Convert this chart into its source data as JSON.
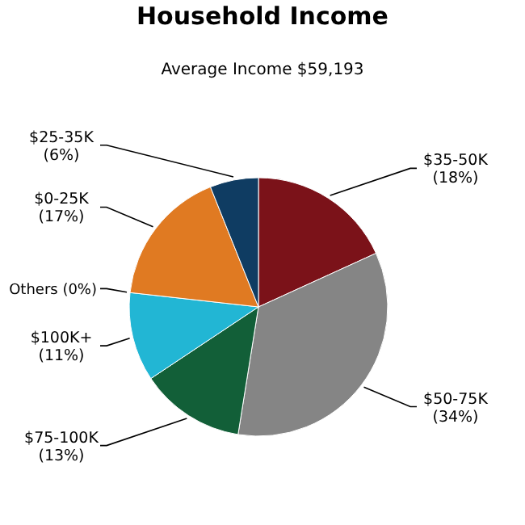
{
  "chart_data": {
    "type": "pie",
    "title": "Household Income",
    "subtitle": "Average Income  $59,193",
    "categories": [
      "$35-50K",
      "$50-75K",
      "$75-100K",
      "$100K+",
      "Others",
      "$0-25K",
      "$25-35K"
    ],
    "values": [
      18,
      34,
      13,
      11,
      0,
      17,
      6
    ],
    "value_labels": [
      "(18%)",
      "(34%)",
      "(13%)",
      "(11%)",
      "(0%)",
      "(17%)",
      "(6%)"
    ],
    "colors": [
      "#7b1219",
      "#858585",
      "#125f38",
      "#22b6d4",
      "#999999",
      "#e07a22",
      "#0f3c62"
    ]
  }
}
